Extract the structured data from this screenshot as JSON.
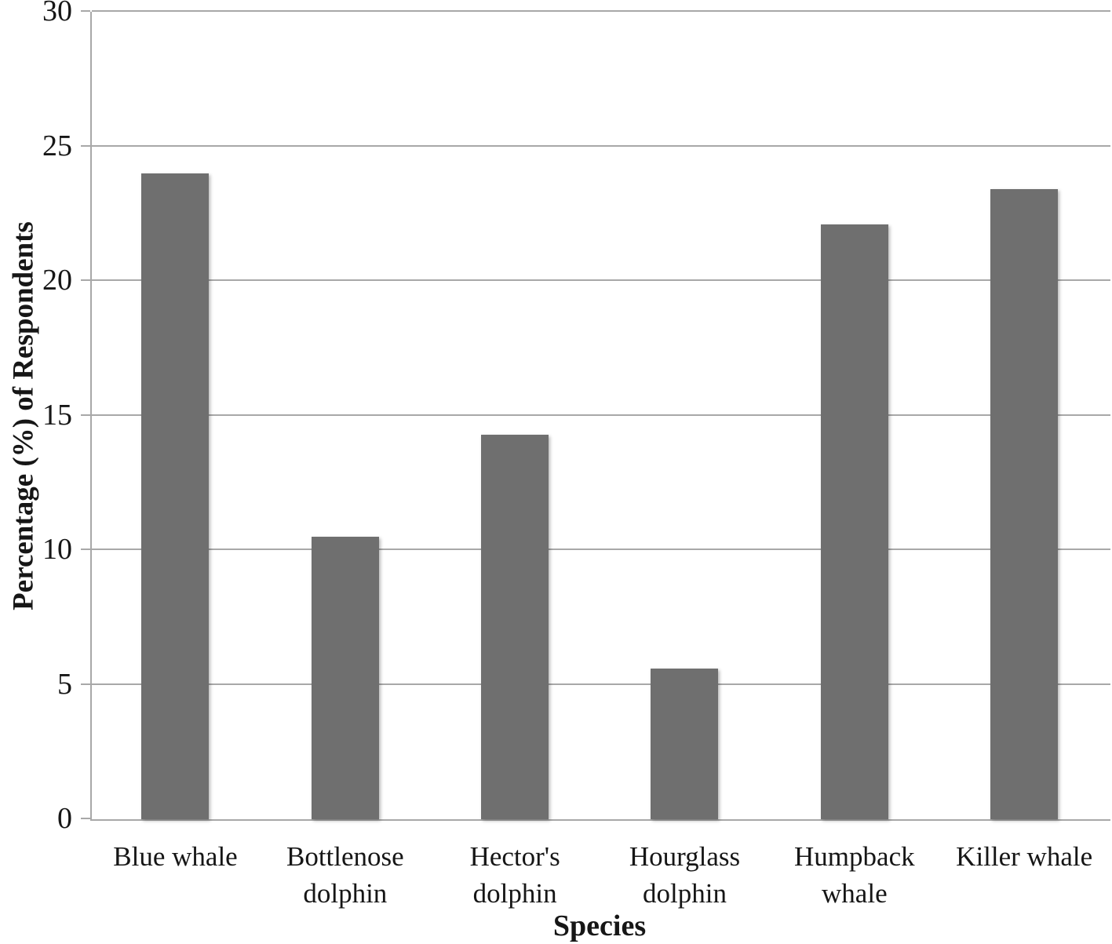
{
  "chart_data": {
    "type": "bar",
    "title": "",
    "categories": [
      "Blue whale",
      "Bottlenose dolphin",
      "Hector's dolphin",
      "Hourglass dolphin",
      "Humpback whale",
      "Killer whale"
    ],
    "values": [
      24.0,
      10.5,
      14.3,
      5.6,
      22.1,
      23.4
    ],
    "xlabel": "Species",
    "ylabel": "Percentage (%) of Respondents",
    "ylim": [
      0,
      30
    ],
    "yticks": [
      0,
      5,
      10,
      15,
      20,
      25,
      30
    ],
    "grid": true,
    "legend_position": "none",
    "colors": {
      "bar": "#6f6f6f",
      "gridline": "#a8a8a8",
      "axis": "#a8a8a8",
      "text": "#161616"
    }
  }
}
